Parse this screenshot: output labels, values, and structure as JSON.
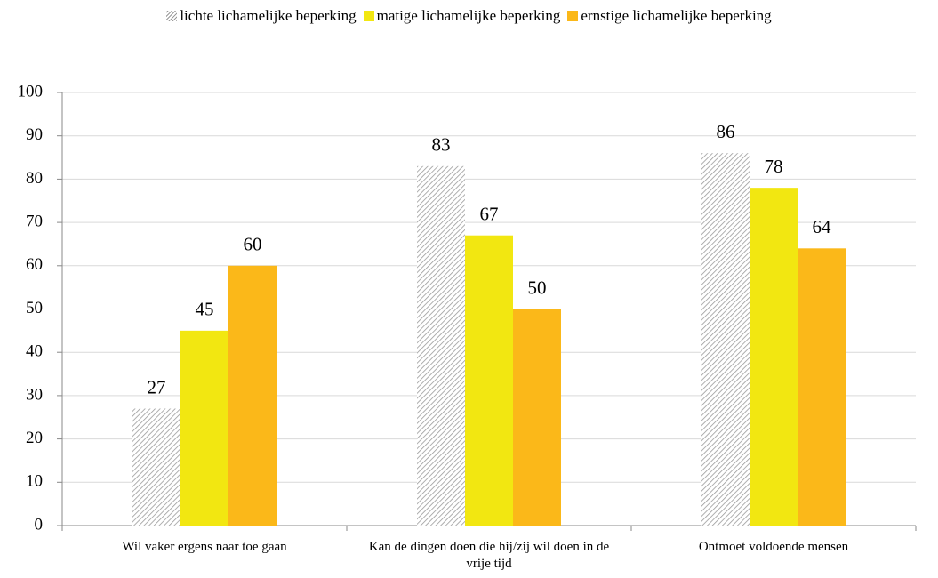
{
  "chart_data": {
    "type": "bar",
    "categories": [
      "Wil vaker ergens naar toe gaan",
      "Kan de dingen doen die hij/zij wil doen in de vrije tijd",
      "Ontmoet voldoende mensen"
    ],
    "series": [
      {
        "name": "lichte lichamelijke beperking",
        "color": "#9a9a9a",
        "pattern": "diagonal",
        "values": [
          27,
          83,
          86
        ]
      },
      {
        "name": "matige lichamelijke beperking",
        "color": "#f2e711",
        "values": [
          45,
          67,
          78
        ]
      },
      {
        "name": "ernstige lichamelijke beperking",
        "color": "#fbb819",
        "values": [
          60,
          50,
          64
        ]
      }
    ],
    "ylim": [
      0,
      100
    ],
    "yticks": [
      0,
      10,
      20,
      30,
      40,
      50,
      60,
      70,
      80,
      90,
      100
    ],
    "grid": true,
    "legend": "top"
  }
}
